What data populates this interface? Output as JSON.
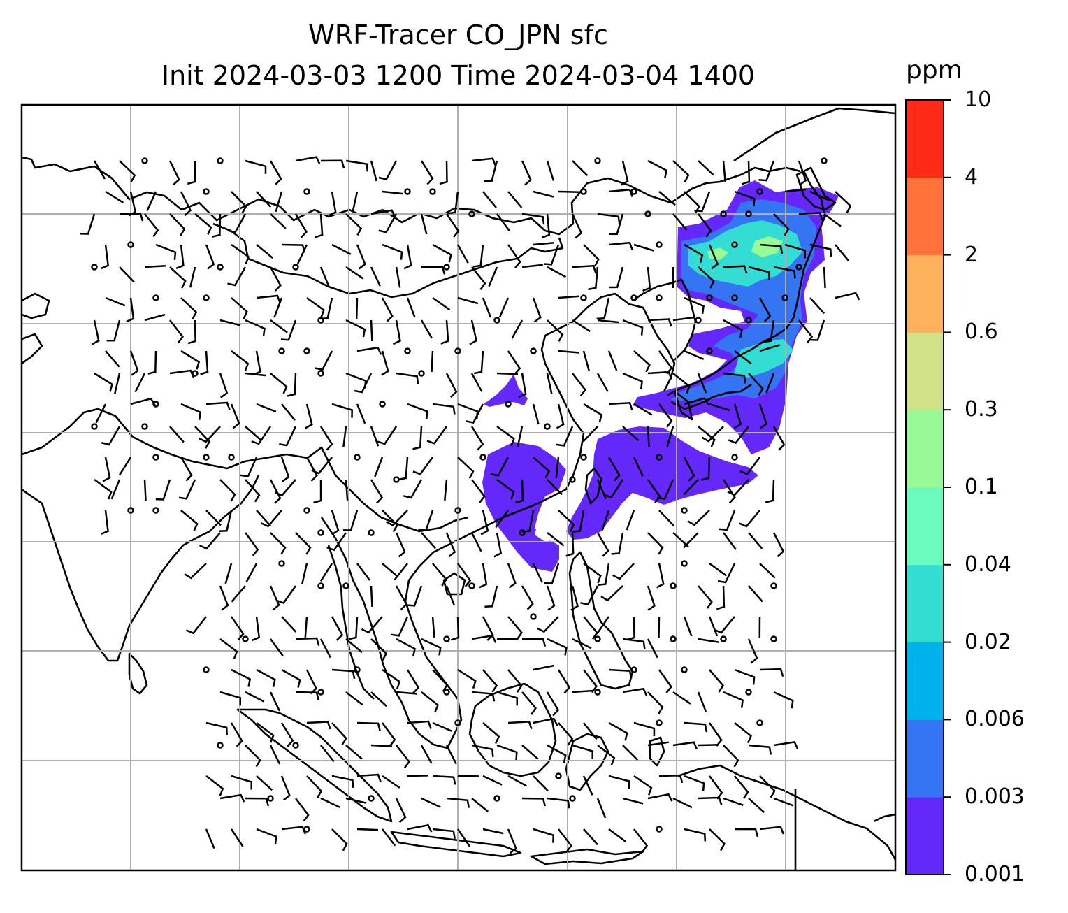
{
  "title": {
    "line1": "WRF-Tracer CO_JPN sfc",
    "line2": "Init 2024-03-03 1200 Time 2024-03-04 1400"
  },
  "colorbar": {
    "unit": "ppm",
    "tick_labels": [
      "0.001",
      "0.003",
      "0.006",
      "0.02",
      "0.04",
      "0.1",
      "0.3",
      "0.6",
      "2",
      "4",
      "10"
    ],
    "colors": [
      "#6428FA",
      "#3574F2",
      "#00B2EB",
      "#33DDD3",
      "#69FBBE",
      "#98FA96",
      "#D0E288",
      "#FFB05B",
      "#FF723A",
      "#FE2A16"
    ]
  },
  "map": {
    "plume_level_colors": {
      "lowest": "#6428FA",
      "low": "#3574F2",
      "mid": "#33DDD3",
      "high": "#98FA96"
    },
    "gridline_color": "#b0b0b0",
    "coastline_color": "#000000",
    "wind_symbol": "wind-barbs",
    "calm_symbol": "calm-circle"
  }
}
